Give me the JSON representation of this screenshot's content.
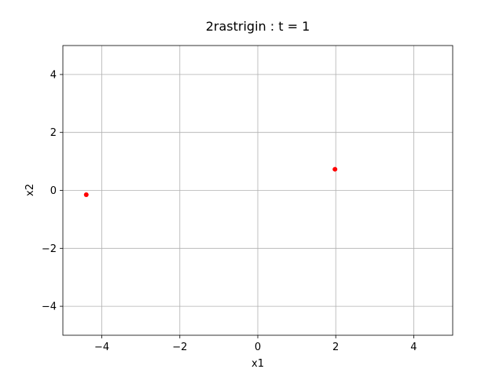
{
  "chart_data": {
    "type": "scatter",
    "title": "2rastrigin : t =  1",
    "xlabel": "x1",
    "ylabel": "x2",
    "xlim": [
      -5,
      5
    ],
    "ylim": [
      -5,
      5
    ],
    "xticks": [
      -4,
      -2,
      0,
      2,
      4
    ],
    "yticks": [
      -4,
      -2,
      0,
      2,
      4
    ],
    "xtick_labels": [
      "−4",
      "−2",
      "0",
      "2",
      "4"
    ],
    "ytick_labels": [
      "−4",
      "−2",
      "0",
      "2",
      "4"
    ],
    "grid": true,
    "grid_color": "#b0b0b0",
    "axis_color": "#000000",
    "series": [
      {
        "color": "#ff0000",
        "points": [
          {
            "x": -4.4,
            "y": -0.15
          },
          {
            "x": 1.98,
            "y": 0.73
          }
        ]
      }
    ]
  }
}
